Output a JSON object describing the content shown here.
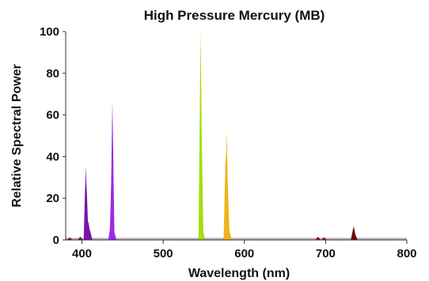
{
  "chart_data": {
    "type": "area",
    "title": "High Pressure Mercury (MB)",
    "xlabel": "Wavelength (nm)",
    "ylabel": "Relative Spectral Power",
    "xlim": [
      380,
      800
    ],
    "ylim": [
      0,
      100
    ],
    "x_ticks": [
      "400",
      "500",
      "600",
      "700",
      "800"
    ],
    "y_ticks": [
      "0",
      "20",
      "40",
      "60",
      "80",
      "100"
    ],
    "grid": false,
    "legend": "none",
    "baseline": 1,
    "peaks": [
      {
        "x": 385,
        "y": 1.2,
        "color": "#7a1450"
      },
      {
        "x": 398,
        "y": 1.5,
        "color": "#7a1450"
      },
      {
        "x": 404.7,
        "y": 35,
        "color": "#7b15a8"
      },
      {
        "x": 405.6,
        "y": 27,
        "color": "#7b15a8"
      },
      {
        "x": 407.8,
        "y": 9,
        "color": "#7b15a8"
      },
      {
        "x": 409.5,
        "y": 5,
        "color": "#7b15a8"
      },
      {
        "x": 435.8,
        "y": 8,
        "color": "#9a2be8"
      },
      {
        "x": 436.6,
        "y": 33,
        "color": "#9a2be8"
      },
      {
        "x": 437.5,
        "y": 66,
        "color": "#9a2be8"
      },
      {
        "x": 439,
        "y": 5,
        "color": "#9a2be8"
      },
      {
        "x": 546.1,
        "y": 100,
        "color": "#a6dd10"
      },
      {
        "x": 547.1,
        "y": 56,
        "color": "#a6dd10"
      },
      {
        "x": 548.5,
        "y": 5,
        "color": "#a6dd10"
      },
      {
        "x": 577,
        "y": 42,
        "color": "#f0b418"
      },
      {
        "x": 578.2,
        "y": 52,
        "color": "#f0b418"
      },
      {
        "x": 579.3,
        "y": 29,
        "color": "#f0b418"
      },
      {
        "x": 581,
        "y": 5,
        "color": "#f0b418"
      },
      {
        "x": 690.7,
        "y": 1.5,
        "color": "#8a1010"
      },
      {
        "x": 698,
        "y": 1.3,
        "color": "#8a1010"
      },
      {
        "x": 734.5,
        "y": 6.5,
        "color": "#6a0b0b"
      },
      {
        "x": 736,
        "y": 3,
        "color": "#6a0b0b"
      }
    ]
  }
}
